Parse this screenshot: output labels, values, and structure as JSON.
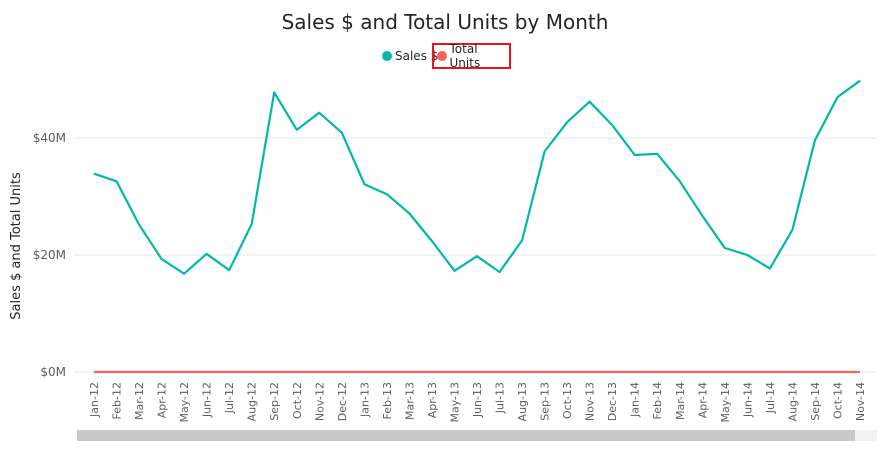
{
  "chart_data": {
    "type": "line",
    "title": "Sales $ and Total Units by Month",
    "xlabel": "",
    "ylabel": "Sales $ and Total Units",
    "ylim": [
      0,
      50
    ],
    "y_unit": "M",
    "y_ticks": [
      "$0M",
      "$20M",
      "$40M"
    ],
    "y_tick_values": [
      0,
      20,
      40
    ],
    "grid": true,
    "legend_position": "top-center",
    "categories": [
      "Jan-12",
      "Feb-12",
      "Mar-12",
      "Apr-12",
      "May-12",
      "Jun-12",
      "Jul-12",
      "Aug-12",
      "Sep-12",
      "Oct-12",
      "Nov-12",
      "Dec-12",
      "Jan-13",
      "Feb-13",
      "Mar-13",
      "Apr-13",
      "May-13",
      "Jun-13",
      "Jul-13",
      "Aug-13",
      "Sep-13",
      "Oct-13",
      "Nov-13",
      "Dec-13",
      "Jan-14",
      "Feb-14",
      "Mar-14",
      "Apr-14",
      "May-14",
      "Jun-14",
      "Jul-14",
      "Aug-14",
      "Sep-14",
      "Oct-14",
      "Nov-14"
    ],
    "series": [
      {
        "name": "Sales $",
        "color": "#01b8aa",
        "values": [
          33.9,
          32.6,
          25.2,
          19.3,
          16.8,
          20.2,
          17.4,
          25.3,
          47.8,
          41.4,
          44.3,
          40.9,
          32.1,
          30.4,
          27.1,
          22.4,
          17.3,
          19.8,
          17.1,
          22.5,
          37.7,
          42.7,
          46.2,
          42.2,
          37.1,
          37.3,
          32.6,
          26.7,
          21.2,
          20.0,
          17.7,
          24.3,
          39.6,
          47.0,
          49.8
        ]
      },
      {
        "name": "Total Units",
        "color": "#fd625e",
        "values": [
          0,
          0,
          0,
          0,
          0,
          0,
          0,
          0,
          0,
          0,
          0,
          0,
          0,
          0,
          0,
          0,
          0,
          0,
          0,
          0,
          0,
          0,
          0,
          0,
          0,
          0,
          0,
          0,
          0,
          0,
          0,
          0,
          0,
          0,
          0
        ]
      }
    ]
  }
}
